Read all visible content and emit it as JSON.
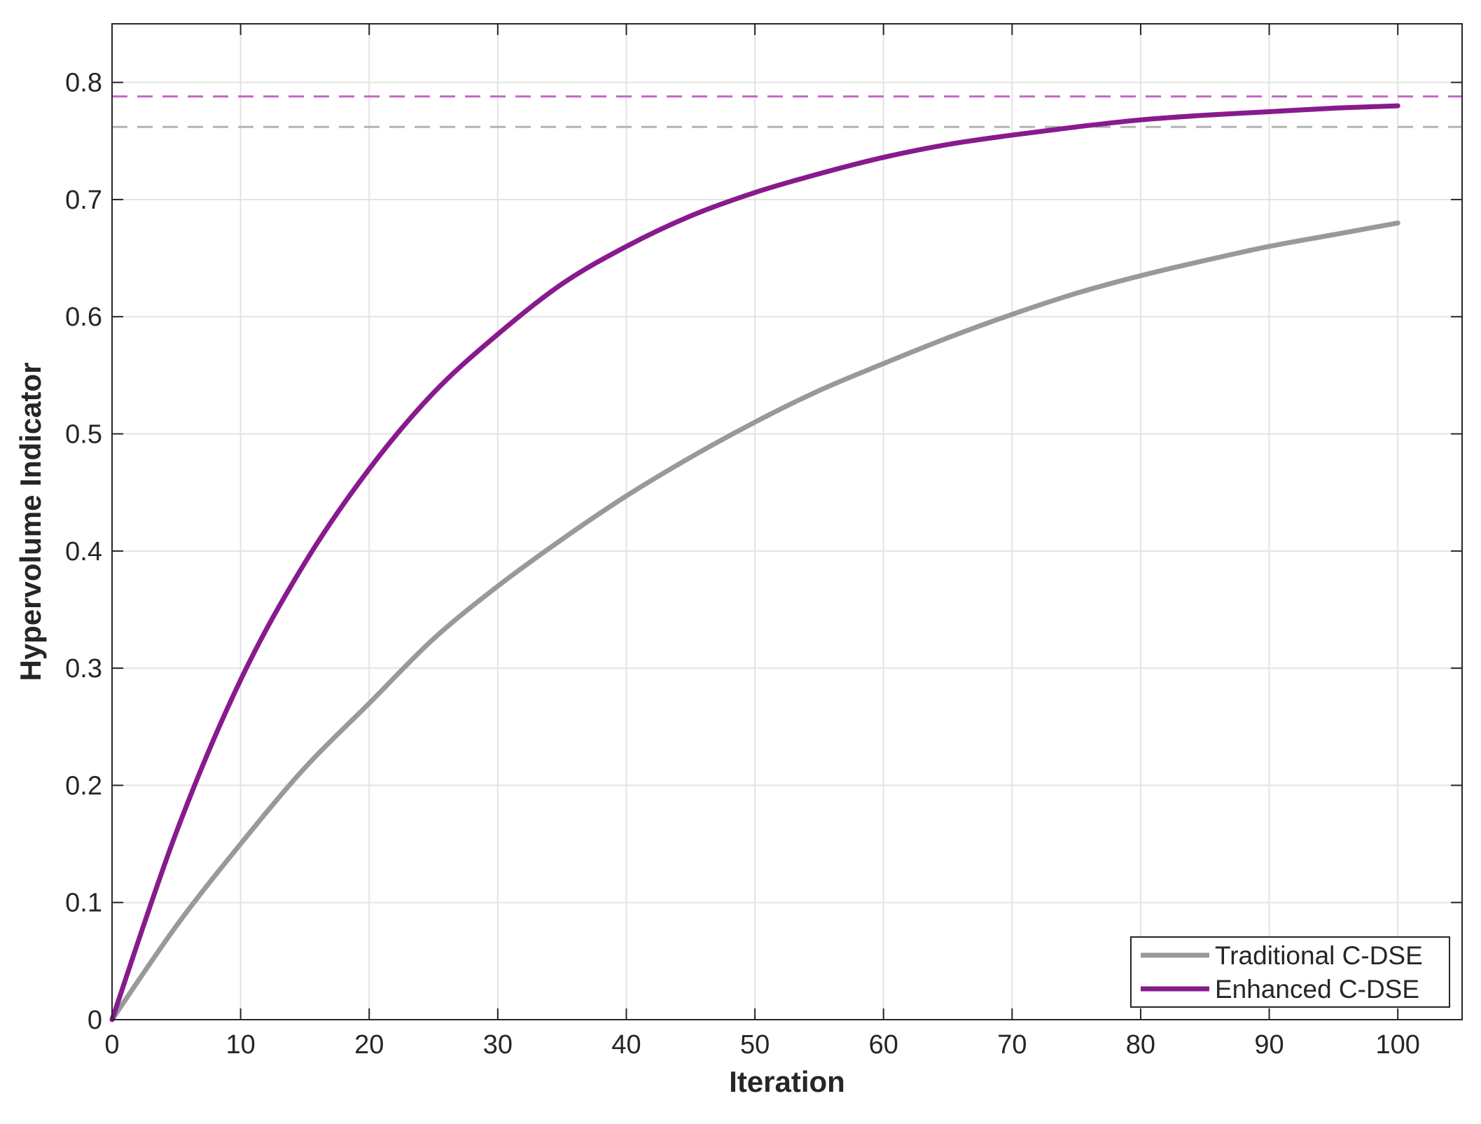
{
  "chart_data": {
    "type": "line",
    "xlabel": "Iteration",
    "ylabel": "Hypervolume Indicator",
    "xlim": [
      0,
      105
    ],
    "ylim": [
      0,
      0.85
    ],
    "xticks": [
      0,
      10,
      20,
      30,
      40,
      50,
      60,
      70,
      80,
      90,
      100
    ],
    "yticks": [
      0,
      0.1,
      0.2,
      0.3,
      0.4,
      0.5,
      0.6,
      0.7,
      0.8
    ],
    "xtick_labels": [
      "0",
      "10",
      "20",
      "30",
      "40",
      "50",
      "60",
      "70",
      "80",
      "90",
      "100"
    ],
    "ytick_labels": [
      "0",
      "0.1",
      "0.2",
      "0.3",
      "0.4",
      "0.5",
      "0.6",
      "0.7",
      "0.8"
    ],
    "grid": true,
    "legend_position": "bottom-right",
    "x": [
      0,
      5,
      10,
      15,
      20,
      25,
      30,
      35,
      40,
      45,
      50,
      55,
      60,
      65,
      70,
      75,
      80,
      85,
      90,
      95,
      100
    ],
    "series": [
      {
        "name": "Traditional C-DSE",
        "color": "#999999",
        "values": [
          0,
          0.08,
          0.15,
          0.215,
          0.27,
          0.325,
          0.37,
          0.41,
          0.447,
          0.48,
          0.51,
          0.537,
          0.56,
          0.582,
          0.602,
          0.62,
          0.635,
          0.648,
          0.66,
          0.67,
          0.68
        ]
      },
      {
        "name": "Enhanced C-DSE",
        "color": "#881a8e",
        "values": [
          0,
          0.16,
          0.29,
          0.39,
          0.47,
          0.535,
          0.585,
          0.628,
          0.66,
          0.686,
          0.706,
          0.722,
          0.736,
          0.747,
          0.755,
          0.762,
          0.768,
          0.772,
          0.775,
          0.778,
          0.78
        ]
      }
    ],
    "reference_lines": [
      {
        "y": 0.788,
        "color": "#c267c6",
        "style": "dashed"
      },
      {
        "y": 0.762,
        "color": "#b3b3b3",
        "style": "dashed"
      }
    ]
  }
}
